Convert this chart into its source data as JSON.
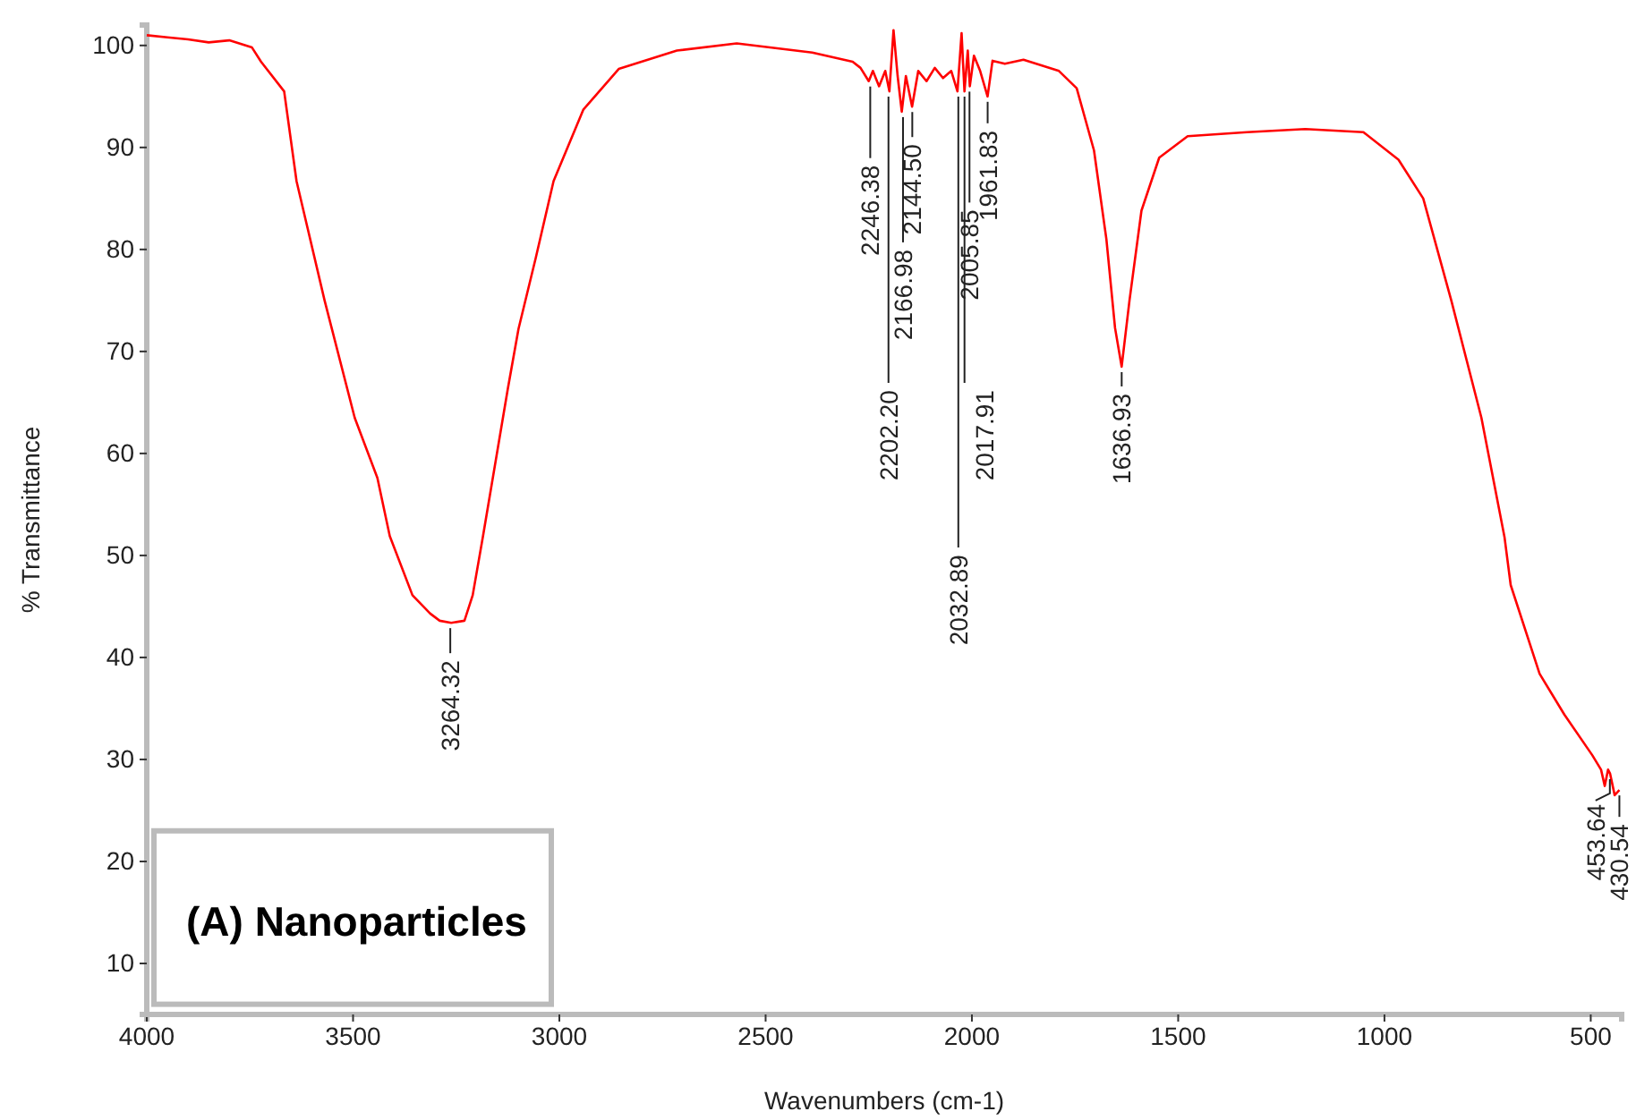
{
  "chart_data": {
    "type": "line",
    "title": "(A) Nanoparticles",
    "xlabel": "Wavenumbers (cm-1)",
    "ylabel": "% Transmittance",
    "xlim": [
      4000,
      425
    ],
    "ylim": [
      5,
      102
    ],
    "xticks": [
      4000,
      3500,
      3000,
      2500,
      2000,
      1500,
      1000,
      500
    ],
    "yticks": [
      10,
      20,
      30,
      40,
      50,
      60,
      70,
      80,
      90,
      100
    ],
    "grid": false,
    "marker": "none",
    "line_style": "solid",
    "series": [
      {
        "color": "#ff0000",
        "x": [
          4000,
          3950,
          3900,
          3850,
          3800,
          3745,
          3723,
          3667,
          3637,
          3569,
          3496,
          3441,
          3411,
          3356,
          3313,
          3290,
          3262,
          3230,
          3210,
          3185,
          3125,
          3099,
          3057,
          3014,
          2942,
          2856,
          2715,
          2570,
          2387,
          2289,
          2270,
          2250,
          2240,
          2225,
          2210,
          2200,
          2190,
          2180,
          2170,
          2160,
          2145,
          2130,
          2110,
          2090,
          2070,
          2050,
          2035,
          2025,
          2018,
          2010,
          2005,
          1995,
          1980,
          1962,
          1950,
          1920,
          1875,
          1789,
          1746,
          1704,
          1674,
          1653,
          1637,
          1618,
          1589,
          1546,
          1477,
          1333,
          1192,
          1051,
          966,
          906,
          838,
          765,
          709,
          694,
          624,
          564,
          496,
          475,
          466,
          458,
          453,
          442,
          430.54
        ],
        "values": [
          101.0,
          100.8,
          100.6,
          100.3,
          100.5,
          99.8,
          98.4,
          95.5,
          86.7,
          75.0,
          63.5,
          57.6,
          51.9,
          46.1,
          44.3,
          43.6,
          43.4,
          43.6,
          46.1,
          51.9,
          66.3,
          72.2,
          79.2,
          86.7,
          93.7,
          97.7,
          99.5,
          100.2,
          99.3,
          98.4,
          97.8,
          96.5,
          97.5,
          96.0,
          97.5,
          95.5,
          101.5,
          97.0,
          93.5,
          97.0,
          94.0,
          97.5,
          96.5,
          97.8,
          96.8,
          97.5,
          95.5,
          101.2,
          95.5,
          99.5,
          96.0,
          99.0,
          97.5,
          95.0,
          98.5,
          98.2,
          98.6,
          97.5,
          95.8,
          89.7,
          81.0,
          72.3,
          68.5,
          75.0,
          83.8,
          89.0,
          91.1,
          91.5,
          91.8,
          91.5,
          88.8,
          85.0,
          75.0,
          63.5,
          51.8,
          47.1,
          38.4,
          34.4,
          30.4,
          29.0,
          27.4,
          29.0,
          28.6,
          26.5,
          27
        ]
      }
    ],
    "annotations": [
      {
        "text": "3264.32",
        "x": 3264.32,
        "y": 43.4
      },
      {
        "text": "2246.38",
        "x": 2246.38,
        "y": 96.5
      },
      {
        "text": "2202.20",
        "x": 2202.2,
        "y": 95.5
      },
      {
        "text": "2166.98",
        "x": 2166.98,
        "y": 93.5
      },
      {
        "text": "2144.50",
        "x": 2144.5,
        "y": 94
      },
      {
        "text": "2032.89",
        "x": 2032.89,
        "y": 95.5
      },
      {
        "text": "2017.91",
        "x": 2017.91,
        "y": 95.5
      },
      {
        "text": "2005.85",
        "x": 2005.85,
        "y": 96
      },
      {
        "text": "1961.83",
        "x": 1961.83,
        "y": 95
      },
      {
        "text": "1636.93",
        "x": 1636.93,
        "y": 68.5
      },
      {
        "text": "453.64",
        "x": 453.64,
        "y": 28.6
      },
      {
        "text": "430.54",
        "x": 430.54,
        "y": 27
      }
    ]
  }
}
